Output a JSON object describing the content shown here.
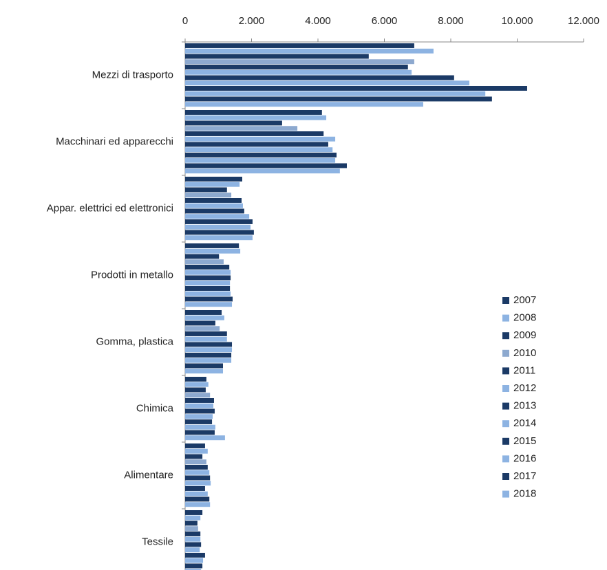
{
  "chart_data": {
    "type": "barh",
    "categories": [
      "Mezzi di trasporto",
      "Macchinari ed apparecchi",
      "Appar. elettrici ed elettronici",
      "Prodotti in metallo",
      "Gomma, plastica",
      "Chimica",
      "Alimentare",
      "Tessile"
    ],
    "xlim": [
      0,
      12000
    ],
    "xticks": [
      0,
      {
        "value": 2000,
        "label": "2.000"
      },
      {
        "value": 4000,
        "label": "4.000"
      },
      {
        "value": 6000,
        "label": "6.000"
      },
      {
        "value": 8000,
        "label": "8.000"
      },
      {
        "value": 10000,
        "label": "10.000"
      },
      {
        "value": 12000,
        "label": "12.000"
      }
    ],
    "legend": "right",
    "series": [
      {
        "name": "2007",
        "color": "#1b3a66",
        "values": [
          6900,
          4120,
          1720,
          1620,
          1100,
          640,
          600,
          520
        ]
      },
      {
        "name": "2008",
        "color": "#8db3e2",
        "values": [
          7480,
          4250,
          1640,
          1660,
          1180,
          700,
          680,
          460
        ]
      },
      {
        "name": "2009",
        "color": "#1b3a66",
        "values": [
          5530,
          2920,
          1260,
          1020,
          910,
          620,
          520,
          370
        ]
      },
      {
        "name": "2010",
        "color": "#8da9cf",
        "values": [
          6900,
          3380,
          1390,
          1160,
          1040,
          750,
          640,
          390
        ]
      },
      {
        "name": "2011",
        "color": "#1b3a66",
        "values": [
          6710,
          4170,
          1700,
          1330,
          1260,
          870,
          680,
          460
        ]
      },
      {
        "name": "2012",
        "color": "#8db3e2",
        "values": [
          6820,
          4520,
          1740,
          1370,
          1260,
          850,
          730,
          460
        ]
      },
      {
        "name": "2013",
        "color": "#1b3a66",
        "values": [
          8100,
          4310,
          1780,
          1370,
          1410,
          890,
          750,
          480
        ]
      },
      {
        "name": "2014",
        "color": "#8db3e2",
        "values": [
          8560,
          4440,
          1930,
          1350,
          1410,
          830,
          770,
          440
        ]
      },
      {
        "name": "2015",
        "color": "#1b3a66",
        "values": [
          10300,
          4560,
          2030,
          1350,
          1390,
          810,
          600,
          600
        ]
      },
      {
        "name": "2016",
        "color": "#8db3e2",
        "values": [
          9040,
          4520,
          1970,
          1370,
          1390,
          910,
          680,
          540
        ]
      },
      {
        "name": "2017",
        "color": "#1b3a66",
        "values": [
          9240,
          4870,
          2070,
          1430,
          1140,
          890,
          730,
          520
        ]
      },
      {
        "name": "2018",
        "color": "#8db3e2",
        "values": [
          7170,
          4660,
          2030,
          1410,
          1140,
          1200,
          750,
          480
        ]
      }
    ]
  }
}
